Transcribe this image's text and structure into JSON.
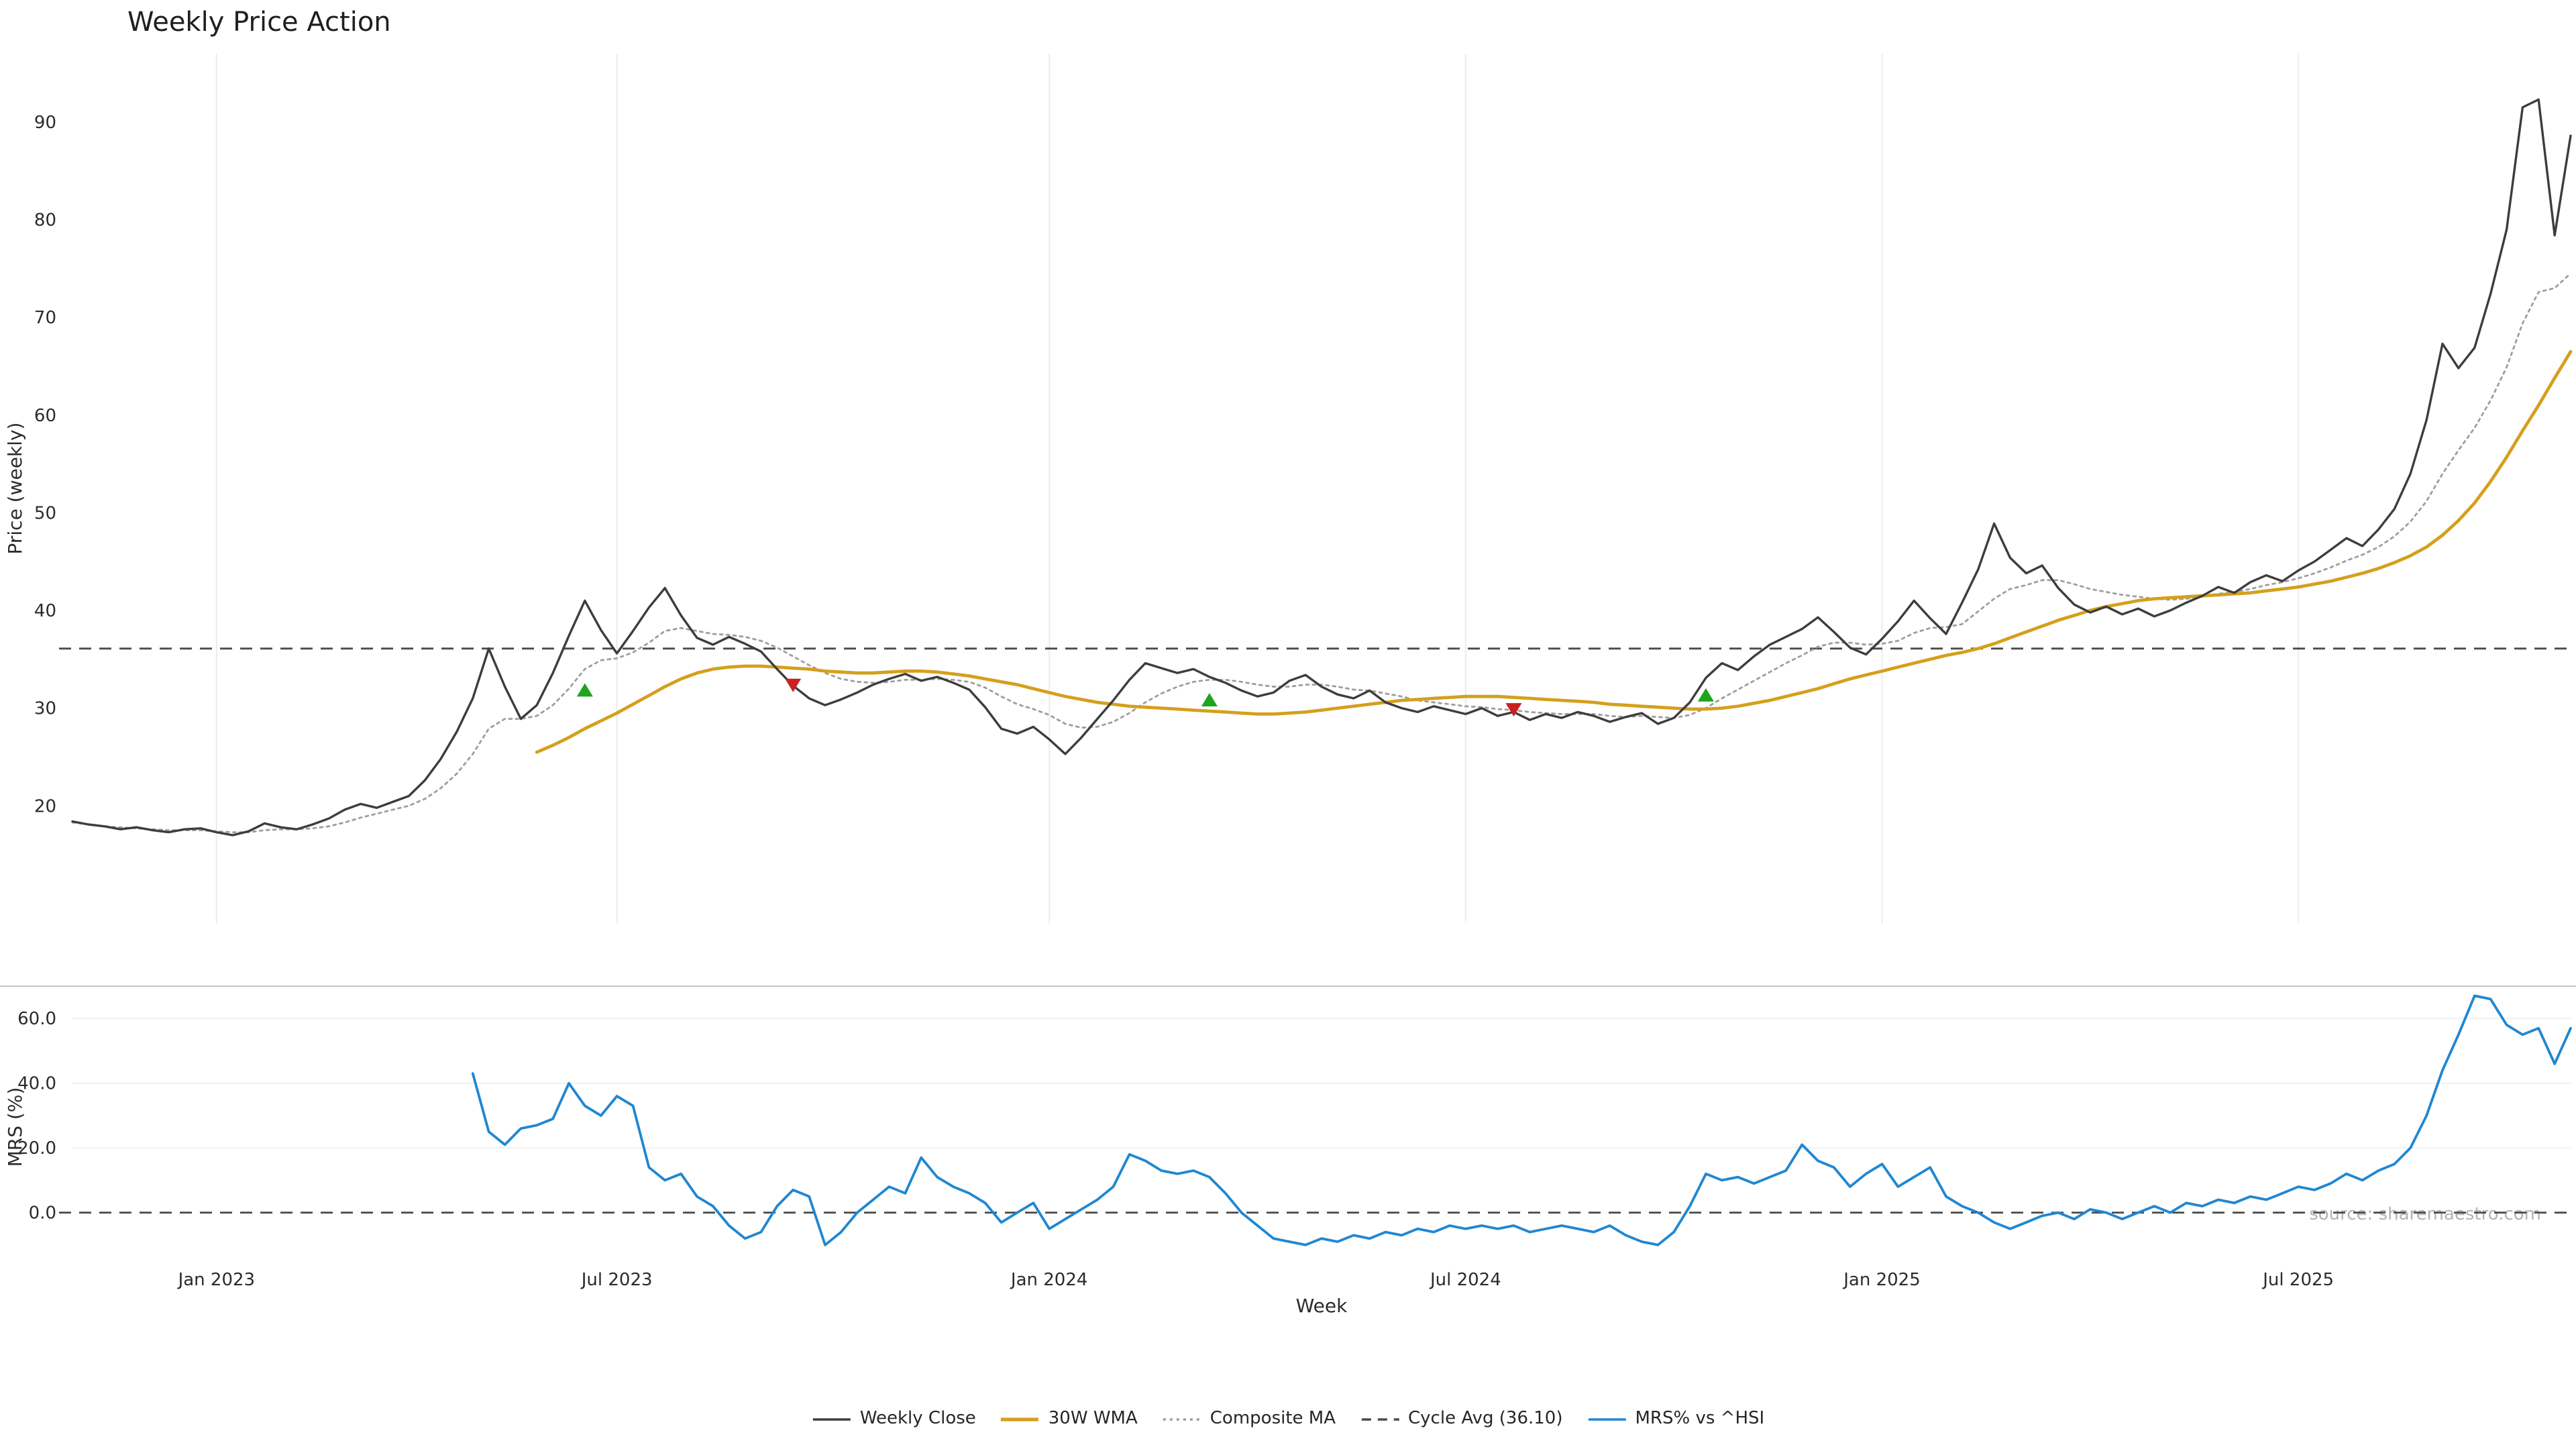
{
  "title": "Weekly Price Action",
  "watermark": "source: sharemaestro.com",
  "colors": {
    "close": "#3d3d3d",
    "wma": "#d4a01c",
    "composite": "#9e9e9e",
    "cycle": "#4a4a4a",
    "mrs": "#1f87d2",
    "buy": "#1da51d",
    "sell": "#c92020",
    "grid": "#ececec",
    "spine": "#c9c9c9",
    "tick_text": "#2b2b2b"
  },
  "legend": [
    {
      "label": "Weekly Close",
      "color": "#3d3d3d",
      "style": "solid"
    },
    {
      "label": "30W WMA",
      "color": "#d4a01c",
      "style": "solid-thick"
    },
    {
      "label": "Composite MA",
      "color": "#9e9e9e",
      "style": "dotted"
    },
    {
      "label": "Cycle Avg (36.10)",
      "color": "#4a4a4a",
      "style": "dashed"
    },
    {
      "label": "MRS% vs ^HSI",
      "color": "#1f87d2",
      "style": "solid"
    }
  ],
  "chart_data": {
    "type": "line",
    "title": "Weekly Price Action",
    "xlabel": "Week",
    "x_unit": "week_index",
    "x_range_weeks": 156,
    "x_ticks": [
      {
        "week": 9,
        "label": "Jan 2023"
      },
      {
        "week": 34,
        "label": "Jul 2023"
      },
      {
        "week": 61,
        "label": "Jan 2024"
      },
      {
        "week": 87,
        "label": "Jul 2024"
      },
      {
        "week": 113,
        "label": "Jan 2025"
      },
      {
        "week": 139,
        "label": "Jul 2025"
      }
    ],
    "panels": [
      {
        "name": "price",
        "ylabel": "Price (weekly)",
        "yticks": [
          20,
          30,
          40,
          50,
          60,
          70,
          80,
          90
        ],
        "ylim": [
          8,
          97
        ],
        "hline": {
          "label": "Cycle Avg",
          "value": 36.1
        },
        "series": [
          {
            "name": "Composite MA",
            "start_week": 0,
            "values": [
              18.3,
              18.1,
              17.9,
              17.8,
              17.7,
              17.6,
              17.5,
              17.5,
              17.5,
              17.4,
              17.3,
              17.3,
              17.5,
              17.6,
              17.6,
              17.7,
              17.9,
              18.3,
              18.8,
              19.2,
              19.6,
              20.0,
              20.7,
              21.8,
              23.3,
              25.3,
              27.9,
              28.9,
              28.9,
              29.2,
              30.3,
              32.0,
              34.0,
              34.9,
              35.1,
              35.7,
              36.7,
              37.9,
              38.2,
              37.9,
              37.6,
              37.5,
              37.3,
              36.9,
              36.2,
              35.3,
              34.4,
              33.6,
              33.0,
              32.7,
              32.6,
              32.7,
              32.9,
              32.9,
              33.0,
              32.9,
              32.7,
              32.1,
              31.2,
              30.4,
              29.9,
              29.3,
              28.4,
              28.0,
              28.1,
              28.6,
              29.5,
              30.6,
              31.5,
              32.2,
              32.7,
              32.9,
              32.9,
              32.7,
              32.4,
              32.2,
              32.2,
              32.4,
              32.4,
              32.2,
              31.9,
              31.8,
              31.5,
              31.2,
              30.8,
              30.6,
              30.4,
              30.2,
              30.1,
              29.9,
              29.8,
              29.6,
              29.5,
              29.4,
              29.4,
              29.4,
              29.2,
              29.1,
              29.2,
              29.1,
              29.0,
              29.3,
              30.0,
              31.0,
              31.9,
              32.8,
              33.7,
              34.6,
              35.4,
              36.3,
              36.7,
              36.7,
              36.5,
              36.6,
              36.9,
              37.7,
              38.2,
              38.3,
              38.6,
              39.9,
              41.2,
              42.2,
              42.6,
              43.1,
              43.1,
              42.7,
              42.2,
              41.9,
              41.6,
              41.4,
              41.2,
              41.1,
              41.2,
              41.4,
              41.7,
              41.9,
              42.2,
              42.6,
              42.9,
              43.3,
              43.8,
              44.4,
              45.1,
              45.7,
              46.5,
              47.6,
              49.1,
              51.2,
              54.0,
              56.4,
              58.7,
              61.5,
              64.9,
              69.4,
              72.6,
              73.0,
              74.5
            ]
          },
          {
            "name": "30W WMA",
            "start_week": 29,
            "values": [
              25.5,
              26.2,
              27.0,
              27.9,
              28.7,
              29.5,
              30.4,
              31.3,
              32.2,
              33.0,
              33.6,
              34.0,
              34.2,
              34.3,
              34.3,
              34.2,
              34.1,
              34.0,
              33.8,
              33.7,
              33.6,
              33.6,
              33.7,
              33.8,
              33.8,
              33.7,
              33.5,
              33.3,
              33.0,
              32.7,
              32.4,
              32.0,
              31.6,
              31.2,
              30.9,
              30.6,
              30.4,
              30.2,
              30.1,
              30.0,
              29.9,
              29.8,
              29.7,
              29.6,
              29.5,
              29.4,
              29.4,
              29.5,
              29.6,
              29.8,
              30.0,
              30.2,
              30.4,
              30.6,
              30.8,
              30.9,
              31.0,
              31.1,
              31.2,
              31.2,
              31.2,
              31.1,
              31.0,
              30.9,
              30.8,
              30.7,
              30.6,
              30.4,
              30.3,
              30.2,
              30.1,
              30.0,
              29.9,
              29.9,
              30.0,
              30.2,
              30.5,
              30.8,
              31.2,
              31.6,
              32.0,
              32.5,
              33.0,
              33.4,
              33.8,
              34.2,
              34.6,
              35.0,
              35.4,
              35.7,
              36.1,
              36.6,
              37.2,
              37.8,
              38.4,
              39.0,
              39.5,
              40.0,
              40.4,
              40.7,
              41.0,
              41.2,
              41.3,
              41.4,
              41.5,
              41.6,
              41.7,
              41.8,
              42.0,
              42.2,
              42.4,
              42.7,
              43.0,
              43.4,
              43.8,
              44.3,
              44.9,
              45.6,
              46.5,
              47.7,
              49.2,
              51.0,
              53.2,
              55.7,
              58.4,
              61.0,
              63.8,
              66.5
            ]
          },
          {
            "name": "Weekly Close",
            "start_week": 0,
            "values": [
              18.4,
              18.1,
              17.9,
              17.6,
              17.8,
              17.5,
              17.3,
              17.6,
              17.7,
              17.3,
              17.0,
              17.4,
              18.2,
              17.8,
              17.6,
              18.1,
              18.7,
              19.6,
              20.2,
              19.8,
              20.4,
              21.0,
              22.6,
              24.8,
              27.6,
              31.0,
              36.1,
              32.2,
              28.9,
              30.3,
              33.6,
              37.4,
              41.0,
              38.0,
              35.6,
              37.9,
              40.3,
              42.3,
              39.5,
              37.2,
              36.5,
              37.3,
              36.6,
              35.8,
              34.0,
              32.3,
              31.0,
              30.3,
              30.9,
              31.6,
              32.4,
              33.0,
              33.5,
              32.8,
              33.2,
              32.6,
              31.9,
              30.1,
              27.9,
              27.4,
              28.1,
              26.8,
              25.3,
              27.0,
              28.9,
              30.8,
              32.9,
              34.6,
              34.1,
              33.6,
              34.0,
              33.2,
              32.6,
              31.8,
              31.2,
              31.6,
              32.8,
              33.4,
              32.2,
              31.4,
              31.0,
              31.8,
              30.6,
              30.0,
              29.6,
              30.2,
              29.8,
              29.4,
              30.0,
              29.2,
              29.6,
              28.8,
              29.4,
              29.0,
              29.6,
              29.2,
              28.6,
              29.1,
              29.5,
              28.4,
              29.0,
              30.6,
              33.1,
              34.6,
              33.9,
              35.3,
              36.5,
              37.3,
              38.1,
              39.3,
              37.8,
              36.2,
              35.5,
              37.1,
              38.9,
              41.0,
              39.2,
              37.6,
              40.8,
              44.2,
              48.9,
              45.4,
              43.8,
              44.6,
              42.3,
              40.6,
              39.8,
              40.4,
              39.6,
              40.2,
              39.4,
              40.0,
              40.8,
              41.5,
              42.4,
              41.8,
              42.9,
              43.6,
              43.0,
              44.1,
              45.0,
              46.2,
              47.4,
              46.6,
              48.3,
              50.4,
              54.0,
              59.5,
              67.3,
              64.8,
              66.9,
              72.4,
              79.0,
              91.5,
              92.3,
              78.4,
              88.6
            ]
          }
        ],
        "markers": {
          "buys": [
            [
              32,
              31.8
            ],
            [
              71,
              30.8
            ],
            [
              102,
              31.3
            ]
          ],
          "sells": [
            [
              45,
              32.4
            ],
            [
              90,
              29.9
            ]
          ]
        }
      },
      {
        "name": "mrs",
        "ylabel": "MRS (%)",
        "ytick_labels": [
          "0.0",
          "20.0",
          "40.0",
          "60.0"
        ],
        "yticks": [
          0,
          20,
          40,
          60
        ],
        "ylim": [
          -15,
          70
        ],
        "hline": {
          "label": "zero",
          "value": 0
        },
        "series": [
          {
            "name": "MRS% vs ^HSI",
            "start_week": 25,
            "values": [
              43,
              25,
              21,
              26,
              27,
              29,
              40,
              33,
              30,
              36,
              33,
              14,
              10,
              12,
              5,
              2,
              -4,
              -8,
              -6,
              2,
              7,
              5,
              -10,
              -6,
              0,
              4,
              8,
              6,
              17,
              11,
              8,
              6,
              3,
              -3,
              0,
              3,
              -5,
              -2,
              1,
              4,
              8,
              18,
              16,
              13,
              12,
              13,
              11,
              6,
              0,
              -4,
              -8,
              -9,
              -10,
              -8,
              -9,
              -7,
              -8,
              -6,
              -7,
              -5,
              -6,
              -4,
              -5,
              -4,
              -5,
              -4,
              -6,
              -5,
              -4,
              -5,
              -6,
              -4,
              -7,
              -9,
              -10,
              -6,
              2,
              12,
              10,
              11,
              9,
              11,
              13,
              21,
              16,
              14,
              8,
              12,
              15,
              8,
              11,
              14,
              5,
              2,
              0,
              -3,
              -5,
              -3,
              -1,
              0,
              -2,
              1,
              0,
              -2,
              0,
              2,
              0,
              3,
              2,
              4,
              3,
              5,
              4,
              6,
              8,
              7,
              9,
              12,
              10,
              13,
              15,
              20,
              30,
              44,
              55,
              67,
              66,
              58,
              55,
              57,
              46,
              57
            ]
          }
        ]
      }
    ]
  }
}
